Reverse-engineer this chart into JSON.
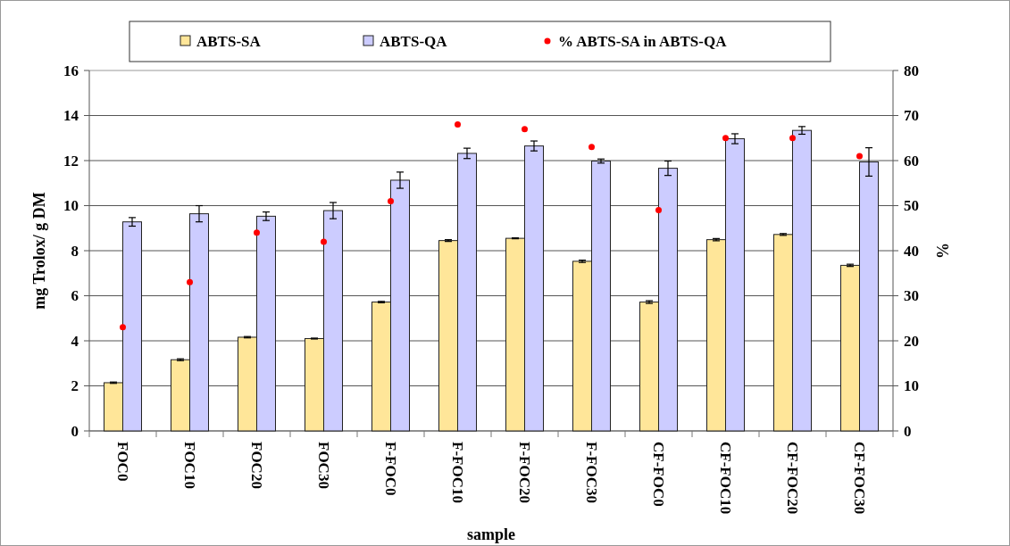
{
  "chart_data": {
    "type": "bar",
    "xlabel": "sample",
    "ylabel": "mg Trolox/ g DM",
    "y2label": "%",
    "categories": [
      "FOC0",
      "FOC10",
      "FOC20",
      "FOC30",
      "F-FOC0",
      "F-FOC10",
      "F-FOC20",
      "F-FOC30",
      "CF-FOC0",
      "CF-FOC10",
      "CF-FOC20",
      "CF-FOC30"
    ],
    "series": [
      {
        "name": "ABTS-SA",
        "color": "#ffe699",
        "values": [
          2.14,
          3.16,
          4.16,
          4.1,
          5.72,
          8.45,
          8.55,
          7.53,
          5.72,
          8.49,
          8.72,
          7.35
        ],
        "errors": [
          0.03,
          0.04,
          0.03,
          0.02,
          0.03,
          0.04,
          0.02,
          0.05,
          0.06,
          0.05,
          0.04,
          0.05
        ]
      },
      {
        "name": "ABTS-QA",
        "color": "#ccccff",
        "values": [
          9.28,
          9.64,
          9.53,
          9.78,
          11.13,
          12.32,
          12.65,
          11.98,
          11.66,
          12.97,
          13.34,
          11.94
        ],
        "errors": [
          0.19,
          0.36,
          0.19,
          0.36,
          0.36,
          0.23,
          0.22,
          0.09,
          0.32,
          0.22,
          0.17,
          0.63
        ]
      },
      {
        "name": "% ABTS-SA in ABTS-QA",
        "type": "scatter",
        "axis": "y2",
        "color": "#ff0000",
        "values": [
          23,
          33,
          44,
          42,
          51,
          68,
          67,
          63,
          49,
          65,
          65,
          61
        ]
      }
    ],
    "ylim": [
      0,
      16
    ],
    "yticks": [
      0,
      2,
      4,
      6,
      8,
      10,
      12,
      14,
      16
    ],
    "y2lim": [
      0,
      80
    ],
    "y2ticks": [
      0,
      10,
      20,
      30,
      40,
      50,
      60,
      70,
      80
    ],
    "grid": "y",
    "legend": "top",
    "marker": "circle"
  }
}
